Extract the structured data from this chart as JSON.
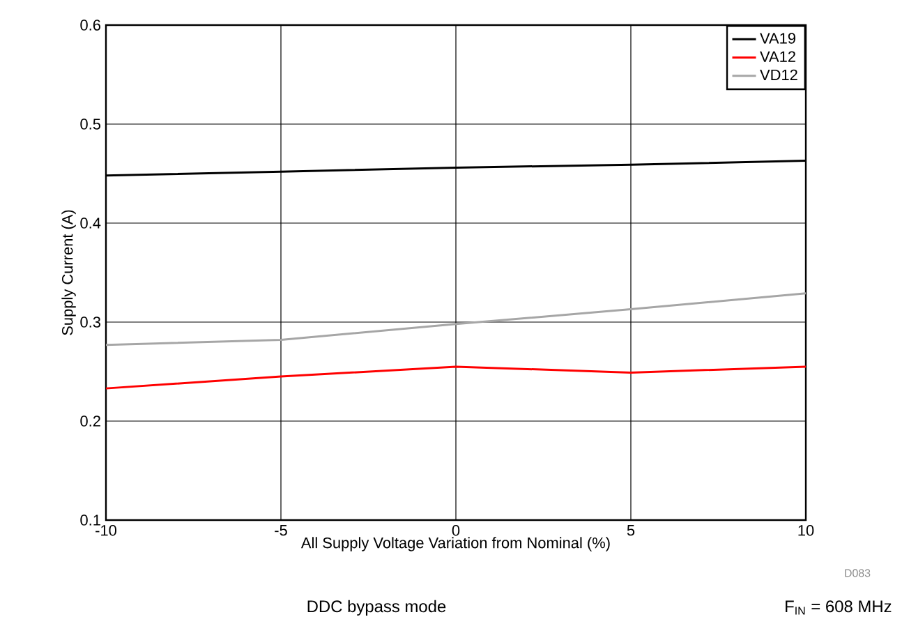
{
  "chart_data": {
    "type": "line",
    "xlabel": "All Supply Voltage Variation from Nominal (%)",
    "ylabel": "Supply Current (A)",
    "x": [
      -10,
      -5,
      0,
      5,
      10
    ],
    "series": [
      {
        "name": "VA19",
        "color": "#000000",
        "values": [
          0.448,
          0.452,
          0.456,
          0.459,
          0.463
        ]
      },
      {
        "name": "VA12",
        "color": "#ff0000",
        "values": [
          0.233,
          0.245,
          0.255,
          0.249,
          0.255
        ]
      },
      {
        "name": "VD12",
        "color": "#a6a6a6",
        "values": [
          0.277,
          0.282,
          0.298,
          0.313,
          0.329
        ]
      }
    ],
    "xlim": [
      -10,
      10
    ],
    "xticks": [
      -10,
      -5,
      0,
      5,
      10
    ],
    "ylim": [
      0.1,
      0.6
    ],
    "yticks": [
      0.1,
      0.2,
      0.3,
      0.4,
      0.5,
      0.6
    ],
    "grid": true,
    "legend": "top right",
    "marker": "none",
    "line_style": "solid",
    "annotations": [
      "D083",
      "DDC bypass mode",
      "F$_{IN}$ = 608 MHz"
    ]
  }
}
